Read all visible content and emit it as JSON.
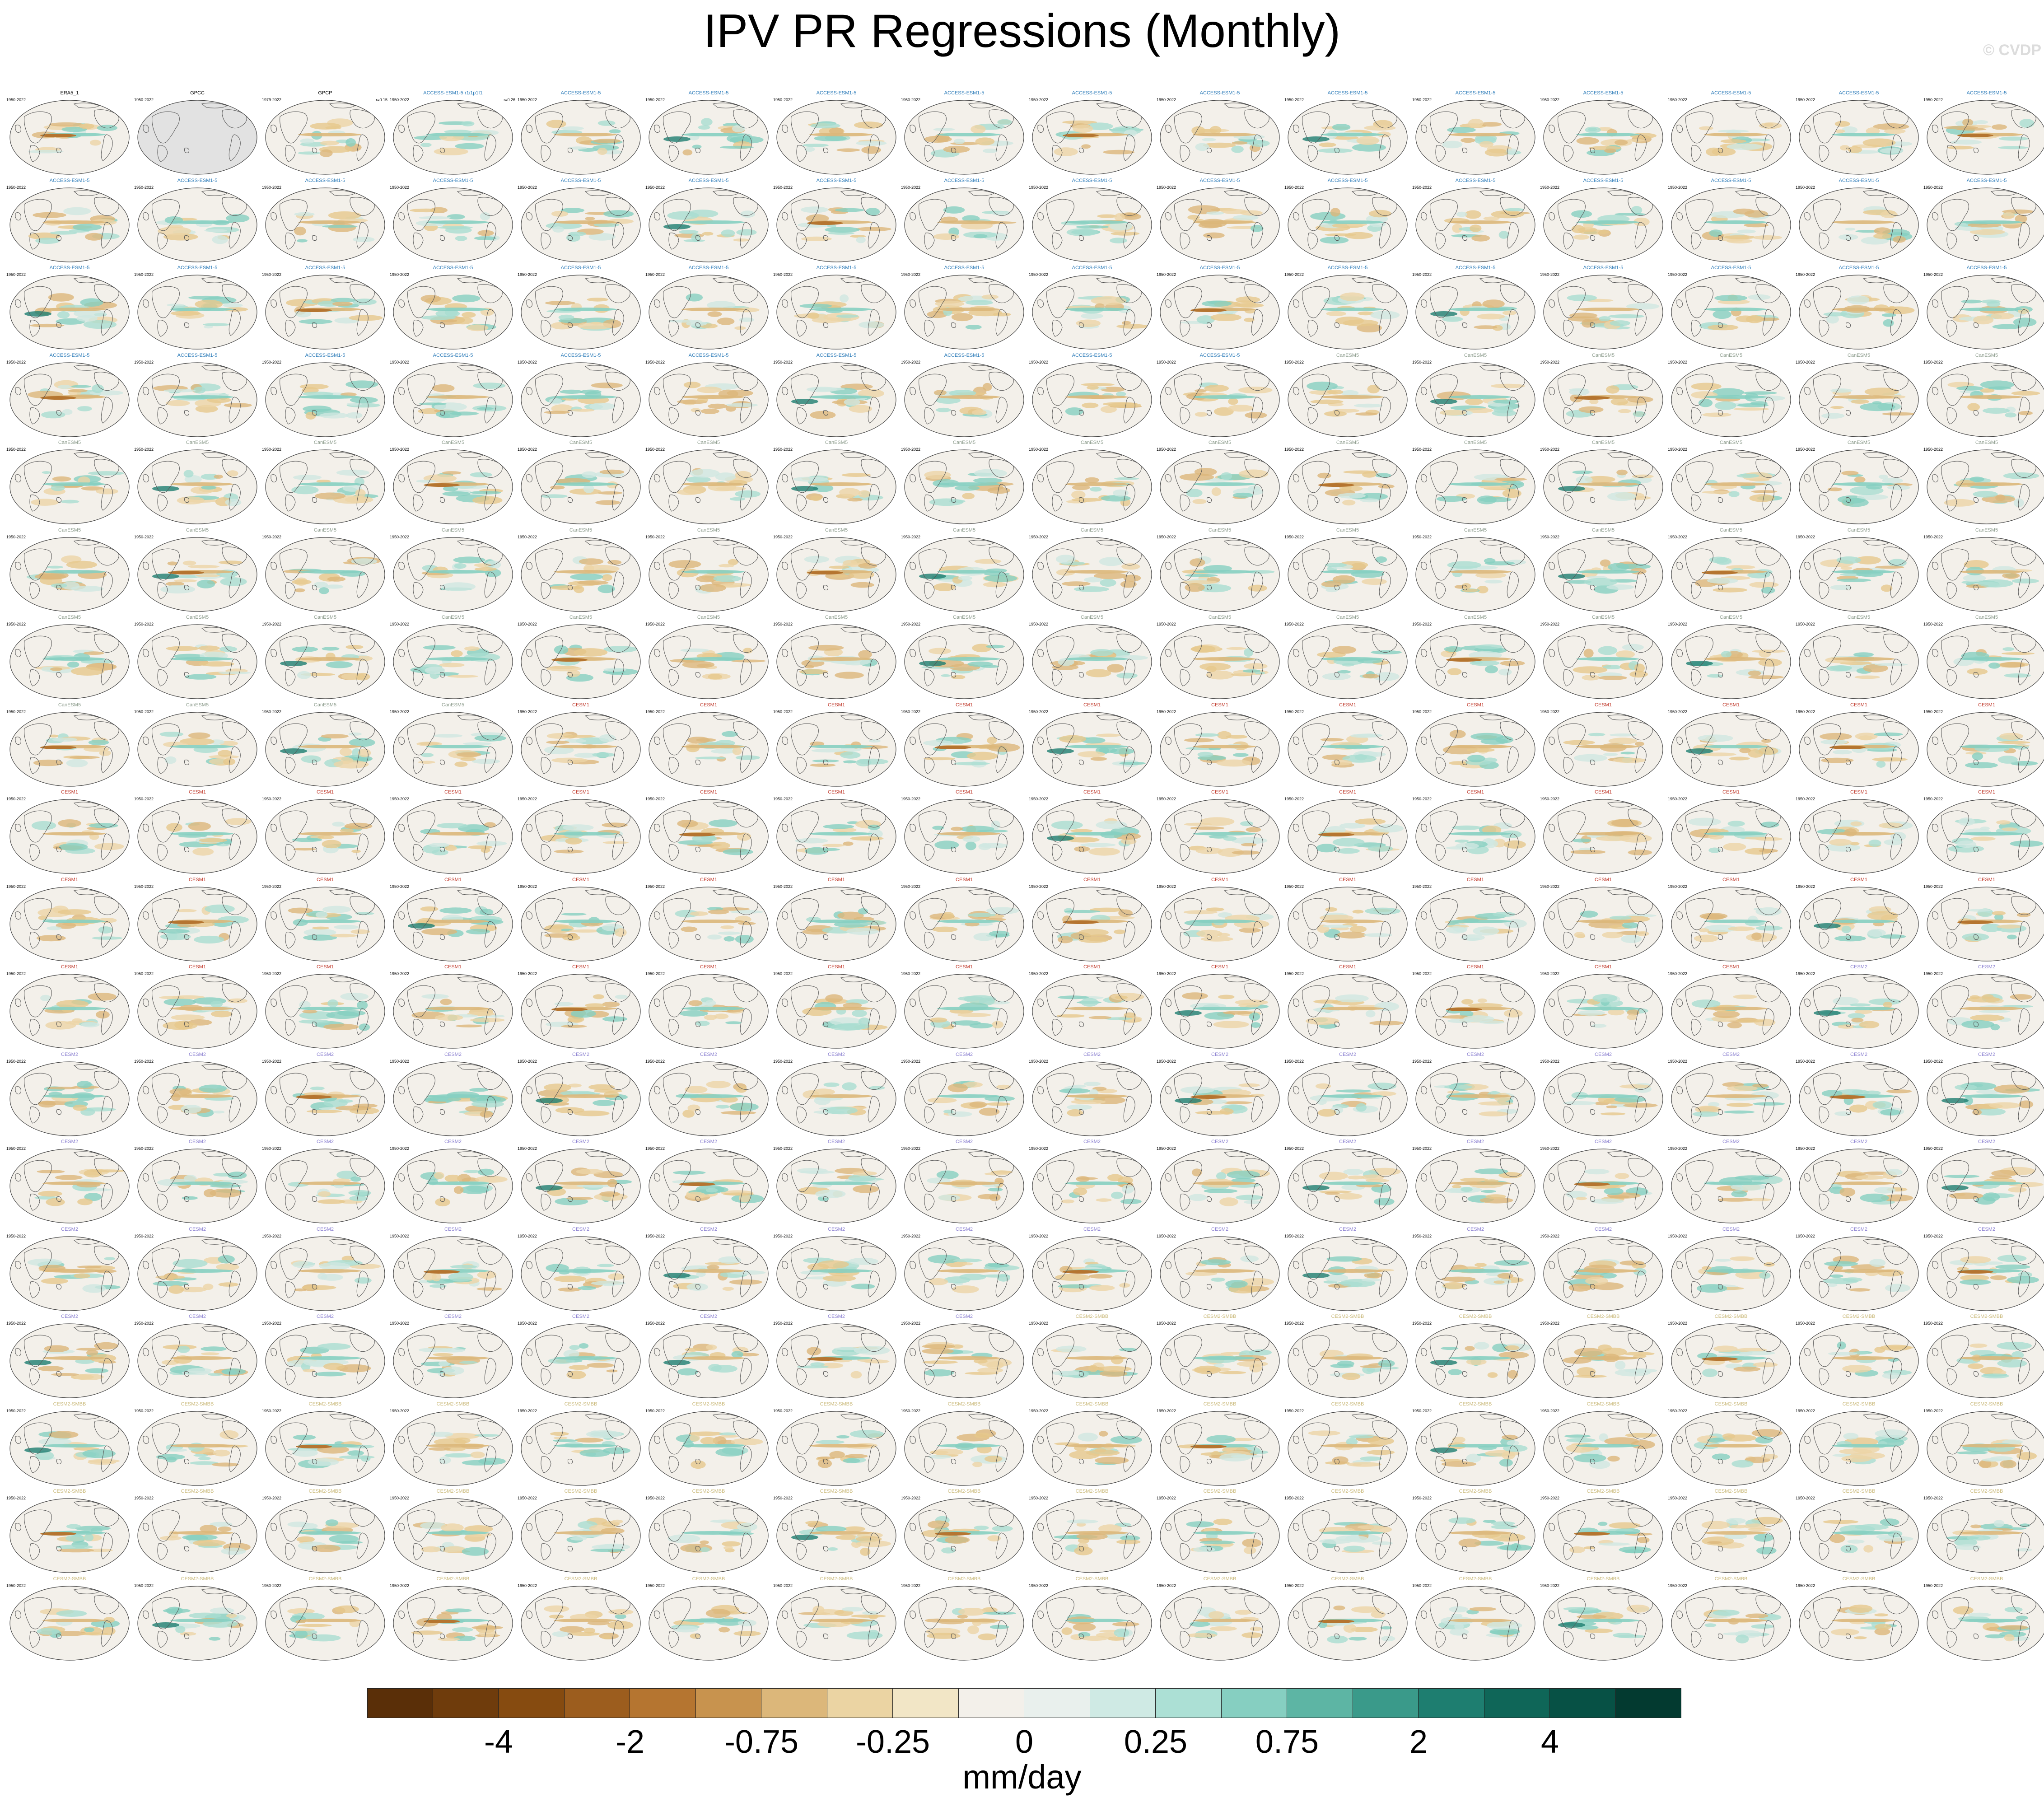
{
  "title": "IPV PR Regressions (Monthly)",
  "watermark": "© CVDP",
  "units": "mm/day",
  "chart_data": {
    "type": "heatmap",
    "title": "IPV PR Regressions (Monthly)",
    "description_kind": "small-multiple global maps of precipitation regression onto IPV index",
    "grid": {
      "rows": 18,
      "columns": 16
    },
    "colorbar": {
      "units": "mm/day",
      "tick_labels": [
        "-4",
        "-2",
        "-0.75",
        "-0.25",
        "0",
        "0.25",
        "0.75",
        "2",
        "4"
      ],
      "tick_boundary_index": [
        2,
        4,
        6,
        8,
        10,
        12,
        14,
        16,
        18
      ],
      "colors": [
        "#5a2f08",
        "#6f3c0c",
        "#864b10",
        "#9c5d1e",
        "#b57530",
        "#c8934e",
        "#dcb77a",
        "#ebd4a3",
        "#f2e6c6",
        "#f3f0ea",
        "#e9f0ed",
        "#cfeae4",
        "#ace0d5",
        "#86cfc1",
        "#5db5a4",
        "#3a9a8a",
        "#1e7e70",
        "#0f6658",
        "#075145",
        "#033a30"
      ]
    },
    "panels": [
      {
        "name": "ERA5_1",
        "years": "1950-2022",
        "r": "",
        "color": "#000000",
        "pattern": 2
      },
      {
        "name": "GPCC",
        "years": "1950-2022",
        "r": "",
        "color": "#000000",
        "pattern": -1
      },
      {
        "name": "GPCP",
        "years": "1979-2022",
        "r": "r=0.15",
        "color": "#000000",
        "pattern": 1
      },
      {
        "name": "ACCESS-ESM1-5 r1i1p1f1",
        "years": "1950-2022",
        "r": "r=0.26",
        "color": "#2a7ab8",
        "pattern": 0
      }
    ],
    "panel_defaults": {
      "years": "1950-2022"
    },
    "group_labels": [
      {
        "model": "ACCESS-ESM1-5",
        "color": "#2a7ab8"
      },
      {
        "model": "CanESM5",
        "color": "#8a9a8a"
      },
      {
        "model": "CESM1",
        "color": "#c0392b"
      },
      {
        "model": "CESM2",
        "color": "#8a7fd0"
      },
      {
        "model": "CESM2-SMBB",
        "color": "#c9b878"
      }
    ]
  }
}
